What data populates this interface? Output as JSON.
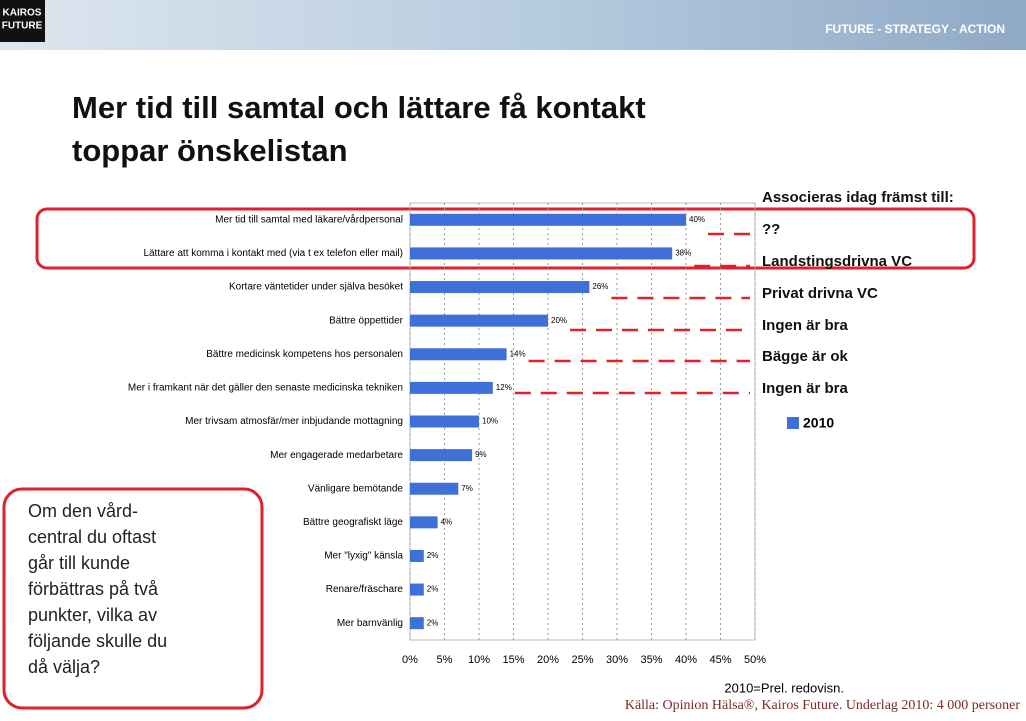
{
  "header": {
    "logo": [
      "KAIROS",
      "FUTURE"
    ],
    "tagline": "FUTURE - STRATEGY - ACTION"
  },
  "title": [
    "Mer tid till samtal och lättare få kontakt",
    "toppar önskelistan"
  ],
  "associations": {
    "heading": "Associeras idag främst till:",
    "items": [
      "??",
      "Landstingsdrivna VC",
      "Privat drivna VC",
      "Ingen är bra",
      "Bägge är ok",
      "Ingen är bra"
    ]
  },
  "question": [
    "Om den vård-",
    "central du oftast",
    "går till kunde",
    "förbättras på två",
    "punkter, vilka av",
    "följande skulle du",
    "då välja?"
  ],
  "footer": {
    "note": "2010=Prel. redovisn.",
    "source": "Källa: Opinion Hälsa®, Kairos Future. Underlag 2010: 4 000 personer"
  },
  "chart_data": {
    "type": "hbar",
    "categories": [
      "Mer tid till samtal med läkare/vårdpersonal",
      "Lättare att komma i kontakt med (via t ex telefon eller mail)",
      "Kortare väntetider under själva besöket",
      "Bättre öppettider",
      "Bättre medicinsk kompetens hos personalen",
      "Mer i framkant när det gäller den senaste medicinska tekniken",
      "Mer trivsam atmosfär/mer inbjudande mottagning",
      "Mer engagerade medarbetare",
      "Vänligare  bemötande",
      "Bättre geografiskt läge",
      "Mer \"lyxig\" känsla",
      "Renare/fräschare",
      "Mer barnvänlig"
    ],
    "series": [
      {
        "name": "2010",
        "color": "#3f6fd8",
        "values": [
          40,
          38,
          26,
          20,
          14,
          12,
          10,
          9,
          7,
          4,
          2,
          2,
          2
        ],
        "value_labels": [
          "40%",
          "38%",
          "26%",
          "20%",
          "14%",
          "12%",
          "10%",
          "9%",
          "7%",
          "4%",
          "2%",
          "2%",
          "2%"
        ]
      }
    ],
    "xlim": [
      0,
      50
    ],
    "xticks": [
      {
        "value": 0,
        "label": "0%"
      },
      {
        "value": 5,
        "label": "5%"
      },
      {
        "value": 10,
        "label": "10%"
      },
      {
        "value": 15,
        "label": "15%"
      },
      {
        "value": 20,
        "label": "20%"
      },
      {
        "value": 25,
        "label": "25%"
      },
      {
        "value": 30,
        "label": "30%"
      },
      {
        "value": 35,
        "label": "35%"
      },
      {
        "value": 40,
        "label": "40%"
      },
      {
        "value": 45,
        "label": "45%"
      },
      {
        "value": 50,
        "label": "50%"
      }
    ],
    "grid": true
  }
}
